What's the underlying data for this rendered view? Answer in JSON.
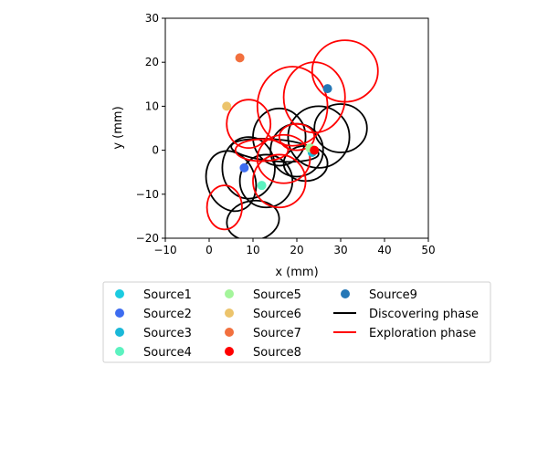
{
  "chart_data": {
    "type": "scatter",
    "xlabel": "x (mm)",
    "ylabel": "y (mm)",
    "xlim": [
      -10,
      50
    ],
    "ylim": [
      -20,
      30
    ],
    "xticks": [
      "−10",
      "0",
      "10",
      "20",
      "30",
      "40",
      "50"
    ],
    "yticks": [
      "−20",
      "−10",
      "0",
      "10",
      "20",
      "30"
    ],
    "xtick_values": [
      -10,
      0,
      10,
      20,
      30,
      40,
      50
    ],
    "ytick_values": [
      -20,
      -10,
      0,
      10,
      20,
      30
    ],
    "grid": false,
    "legend_placement": "below plot, 3 columns",
    "sources": [
      {
        "name": "Source1",
        "x": 23.5,
        "y": -0.3,
        "color": "#1ccbe0"
      },
      {
        "name": "Source2",
        "x": 8,
        "y": -4,
        "color": "#3d6cf0"
      },
      {
        "name": "Source3",
        "x": 23.5,
        "y": -0.5,
        "color": "#1ab8d8"
      },
      {
        "name": "Source4",
        "x": 12,
        "y": -8,
        "color": "#5cf2c0"
      },
      {
        "name": "Source5",
        "x": 23,
        "y": 0.5,
        "color": "#a4f59b"
      },
      {
        "name": "Source6",
        "x": 4,
        "y": 10,
        "color": "#ecc46c"
      },
      {
        "name": "Source7",
        "x": 7,
        "y": 21,
        "color": "#f2703e"
      },
      {
        "name": "Source8",
        "x": 24,
        "y": 0,
        "color": "#ff0000"
      },
      {
        "name": "Source9",
        "x": 27,
        "y": 14,
        "color": "#2477b6"
      }
    ],
    "lines": [
      {
        "name": "Discovering phase",
        "color": "#000000"
      },
      {
        "name": "Exploration phase",
        "color": "#ff0000"
      }
    ],
    "discovering_loops": [
      {
        "cx": 5,
        "cy": -7,
        "rx": 5.5,
        "ry": 7,
        "rot": 20
      },
      {
        "cx": 9,
        "cy": -4,
        "rx": 6,
        "ry": 7,
        "rot": 0
      },
      {
        "cx": 10,
        "cy": -16,
        "rx": 6,
        "ry": 4.5,
        "rot": 10
      },
      {
        "cx": 13,
        "cy": -7,
        "rx": 6,
        "ry": 6,
        "rot": 0
      },
      {
        "cx": 16,
        "cy": 3,
        "rx": 6,
        "ry": 6.5,
        "rot": 0
      },
      {
        "cx": 20,
        "cy": 0,
        "rx": 6,
        "ry": 6,
        "rot": 0
      },
      {
        "cx": 25,
        "cy": 3,
        "rx": 7,
        "ry": 7,
        "rot": 0
      },
      {
        "cx": 30,
        "cy": 5,
        "rx": 6,
        "ry": 5.5,
        "rot": 0
      },
      {
        "cx": 15,
        "cy": 0,
        "rx": 10,
        "ry": 2.5,
        "rot": -5
      },
      {
        "cx": 22,
        "cy": -3,
        "rx": 5,
        "ry": 4,
        "rot": 0
      }
    ],
    "exploration_loops": [
      {
        "cx": 31,
        "cy": 18,
        "rx": 7.5,
        "ry": 7,
        "rot": 0
      },
      {
        "cx": 19,
        "cy": 10,
        "rx": 8,
        "ry": 9,
        "rot": 0
      },
      {
        "cx": 24,
        "cy": 12,
        "rx": 7,
        "ry": 8,
        "rot": 0
      },
      {
        "cx": 9,
        "cy": 6,
        "rx": 5,
        "ry": 5.5,
        "rot": 0
      },
      {
        "cx": 3.5,
        "cy": -13,
        "rx": 4,
        "ry": 5,
        "rot": 0
      },
      {
        "cx": 16,
        "cy": -7,
        "rx": 6,
        "ry": 6,
        "rot": 0
      },
      {
        "cx": 17,
        "cy": -2,
        "rx": 6,
        "ry": 5.5,
        "rot": 0
      },
      {
        "cx": 12,
        "cy": 0,
        "rx": 6,
        "ry": 2.5,
        "rot": 0
      },
      {
        "cx": 20,
        "cy": 3,
        "rx": 4,
        "ry": 3,
        "rot": 0
      }
    ]
  }
}
